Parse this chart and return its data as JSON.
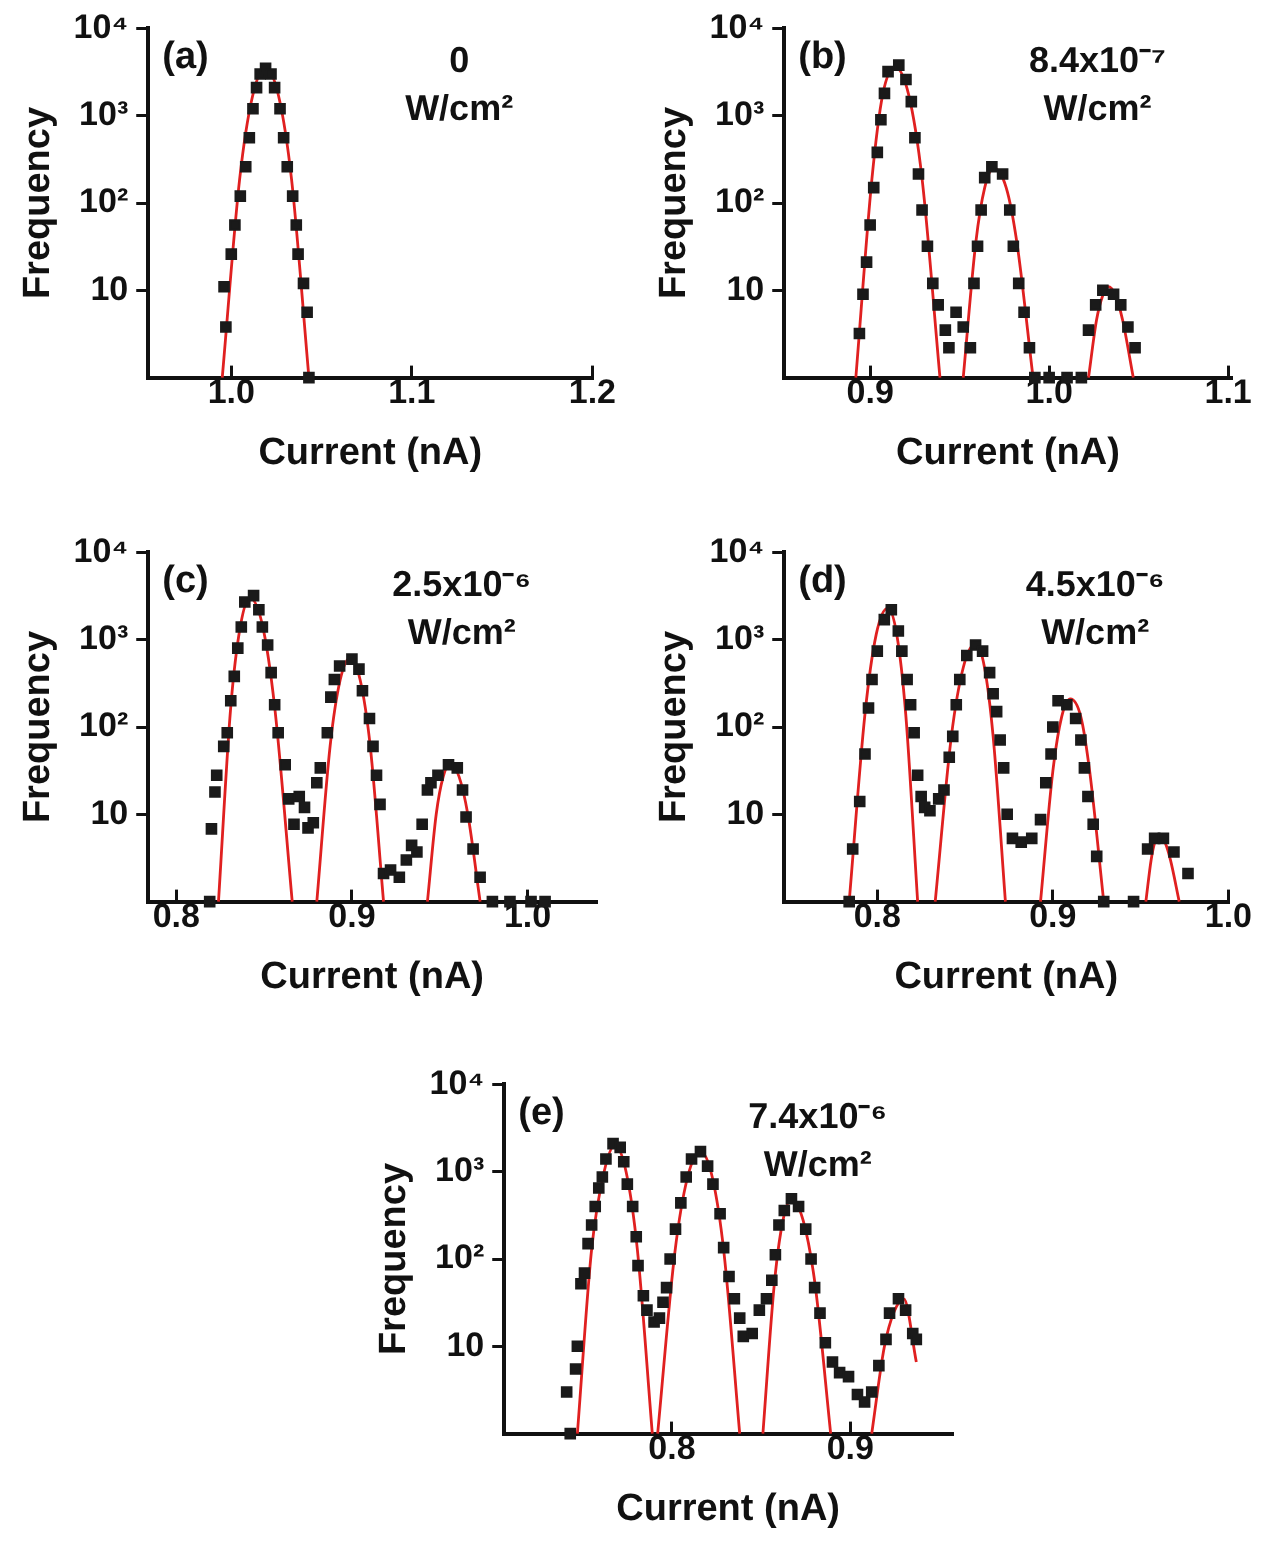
{
  "chart_data": [
    {
      "type": "scatter",
      "title": "(a)",
      "annotations": [
        "0",
        "W/cm²"
      ],
      "xlabel": "Current (nA)",
      "ylabel": "Frequency",
      "log": "y",
      "marker": "square",
      "xlim": [
        0.954,
        1.2
      ],
      "xticks": [
        {
          "value": 1,
          "label": "1.0"
        },
        {
          "value": 1.1,
          "label": "1.1"
        },
        {
          "value": 1.2,
          "label": "1.2"
        }
      ],
      "ylim": [
        1,
        10000
      ],
      "yticks": [
        {
          "value": 10,
          "label": "10"
        },
        {
          "value": 100,
          "label": "10²"
        },
        {
          "value": 1000,
          "label": "10³"
        },
        {
          "value": 10000,
          "label": "10⁴"
        }
      ],
      "series": [
        {
          "type": "scatter",
          "color": "#1a1a1a",
          "x": [
            0.996,
            0.997,
            1.0,
            1.002,
            1.005,
            1.008,
            1.01,
            1.012,
            1.014,
            1.016,
            1.019,
            1.022,
            1.024,
            1.027,
            1.029,
            1.031,
            1.034,
            1.036,
            1.037,
            1.04,
            1.042,
            1.043
          ],
          "values": [
            11,
            3.8,
            26,
            56,
            120,
            260,
            560,
            1200,
            2100,
            3000,
            3500,
            3000,
            2100,
            1200,
            560,
            260,
            120,
            56,
            26,
            12,
            5.6,
            1
          ]
        },
        {
          "type": "line",
          "color": "#e02020",
          "marker": "none",
          "x": [
            0.995,
            1.0046,
            1.0118,
            1.019,
            1.0262,
            1.0334,
            1.043
          ],
          "values": [
            1,
            185,
            1680,
            3500,
            1680,
            185,
            1
          ]
        }
      ]
    },
    {
      "type": "scatter",
      "title": "(b)",
      "annotations": [
        "8.4x10⁻⁷",
        "W/cm²"
      ],
      "xlabel": "Current (nA)",
      "ylabel": "Frequency",
      "log": "y",
      "marker": "square",
      "xlim": [
        0.852,
        1.102
      ],
      "xticks": [
        {
          "value": 0.9,
          "label": "0.9"
        },
        {
          "value": 1,
          "label": "1.0"
        },
        {
          "value": 1.1,
          "label": "1.1"
        }
      ],
      "ylim": [
        1,
        10000
      ],
      "yticks": [
        {
          "value": 10,
          "label": "10"
        },
        {
          "value": 100,
          "label": "10²"
        },
        {
          "value": 1000,
          "label": "10³"
        },
        {
          "value": 10000,
          "label": "10⁴"
        }
      ],
      "series": [
        {
          "type": "scatter",
          "color": "#1a1a1a",
          "x": [
            0.894,
            0.896,
            0.898,
            0.9,
            0.902,
            0.904,
            0.906,
            0.908,
            0.91,
            0.916,
            0.92,
            0.923,
            0.925,
            0.927,
            0.929,
            0.932,
            0.935,
            0.938,
            0.942,
            0.944,
            0.948,
            0.952,
            0.956,
            0.958,
            0.96,
            0.962,
            0.964,
            0.968,
            0.974,
            0.978,
            0.98,
            0.983,
            0.986,
            0.989,
            0.992,
            1.0,
            1.01,
            1.018,
            1.022,
            1.026,
            1.03,
            1.036,
            1.04,
            1.044,
            1.048
          ],
          "values": [
            3.2,
            9,
            21,
            56,
            150,
            380,
            900,
            1800,
            3200,
            3800,
            2600,
            1450,
            560,
            215,
            83,
            32,
            12,
            6.8,
            3.5,
            2.2,
            5.6,
            3.8,
            2.2,
            12,
            32,
            83,
            195,
            260,
            215,
            83,
            32,
            12,
            5.6,
            2.2,
            1,
            1,
            1,
            1,
            3.5,
            6.8,
            10,
            9,
            6.8,
            3.8,
            2.2
          ]
        },
        {
          "type": "line",
          "color": "#e02020",
          "marker": "none",
          "x": [
            0.892,
            0.901,
            0.907,
            0.914,
            0.9215,
            0.929,
            0.939,
            0.945,
            0.952,
            0.959,
            0.964,
            0.969,
            0.976,
            0.982,
            0.991,
            1.006,
            1.022,
            1.0265,
            1.03,
            1.033,
            1.037,
            1.041,
            1.047
          ],
          "values": [
            1,
            190,
            1740,
            3600,
            1740,
            190,
            1,
            null,
            1,
            35,
            150,
            250,
            150,
            35,
            1,
            null,
            1,
            4.6,
            8.8,
            11,
            8.8,
            4.6,
            1
          ]
        }
      ]
    },
    {
      "type": "scatter",
      "title": "(c)",
      "annotations": [
        "2.5x10⁻⁶",
        "W/cm²"
      ],
      "xlabel": "Current (nA)",
      "ylabel": "Frequency",
      "log": "y",
      "marker": "square",
      "xlim": [
        0.784,
        1.039
      ],
      "xticks": [
        {
          "value": 0.8,
          "label": "0.8"
        },
        {
          "value": 0.9,
          "label": "0.9"
        },
        {
          "value": 1,
          "label": "1.0"
        }
      ],
      "ylim": [
        1,
        10000
      ],
      "yticks": [
        {
          "value": 10,
          "label": "10"
        },
        {
          "value": 100,
          "label": "10²"
        },
        {
          "value": 1000,
          "label": "10³"
        },
        {
          "value": 10000,
          "label": "10⁴"
        }
      ],
      "series": [
        {
          "type": "scatter",
          "color": "#1a1a1a",
          "x": [
            0.819,
            0.82,
            0.822,
            0.823,
            0.827,
            0.829,
            0.831,
            0.833,
            0.835,
            0.837,
            0.839,
            0.844,
            0.847,
            0.849,
            0.852,
            0.854,
            0.856,
            0.858,
            0.862,
            0.864,
            0.867,
            0.87,
            0.873,
            0.875,
            0.878,
            0.88,
            0.882,
            0.886,
            0.888,
            0.89,
            0.893,
            0.9,
            0.904,
            0.906,
            0.91,
            0.912,
            0.914,
            0.916,
            0.918,
            0.922,
            0.927,
            0.931,
            0.934,
            0.937,
            0.94,
            0.943,
            0.945,
            0.949,
            0.955,
            0.96,
            0.963,
            0.965,
            0.969,
            0.973,
            0.98,
            0.99,
            1.002,
            1.01
          ],
          "values": [
            1,
            6.8,
            18,
            28,
            60,
            86,
            200,
            380,
            800,
            1400,
            2700,
            3200,
            2200,
            1400,
            870,
            420,
            180,
            86,
            37,
            15,
            7.7,
            16,
            12,
            7,
            8,
            23,
            34,
            86,
            220,
            350,
            500,
            600,
            460,
            260,
            125,
            60,
            28,
            13,
            2.1,
            2.3,
            1.9,
            3,
            4.4,
            3.7,
            7.7,
            19,
            23,
            28,
            37,
            34,
            19,
            9.3,
            4,
            1.9,
            1,
            1,
            1,
            1
          ]
        },
        {
          "type": "line",
          "color": "#e02020",
          "marker": "none",
          "x": [
            0.824,
            0.831,
            0.8366,
            0.842,
            0.849,
            0.856,
            0.866,
            0.873,
            0.88,
            0.8876,
            0.8933,
            0.899,
            0.9047,
            0.9104,
            0.918,
            0.93,
            0.943,
            0.948,
            0.952,
            0.956,
            0.961,
            0.966,
            0.973
          ],
          "values": [
            1,
            170,
            1480,
            3000,
            1480,
            170,
            1,
            null,
            1,
            61,
            345,
            620,
            345,
            61,
            1,
            null,
            1,
            10,
            27,
            38,
            27,
            10,
            1
          ]
        }
      ]
    },
    {
      "type": "scatter",
      "title": "(d)",
      "annotations": [
        "4.5x10⁻⁶",
        "W/cm²"
      ],
      "xlabel": "Current (nA)",
      "ylabel": "Frequency",
      "log": "y",
      "marker": "square",
      "xlim": [
        0.747,
        1.0
      ],
      "xticks": [
        {
          "value": 0.8,
          "label": "0.8"
        },
        {
          "value": 0.9,
          "label": "0.9"
        },
        {
          "value": 1,
          "label": "1.0"
        }
      ],
      "ylim": [
        1,
        10000
      ],
      "yticks": [
        {
          "value": 10,
          "label": "10"
        },
        {
          "value": 100,
          "label": "10²"
        },
        {
          "value": 1000,
          "label": "10³"
        },
        {
          "value": 10000,
          "label": "10⁴"
        }
      ],
      "series": [
        {
          "type": "scatter",
          "color": "#1a1a1a",
          "x": [
            0.784,
            0.786,
            0.79,
            0.793,
            0.795,
            0.797,
            0.8,
            0.804,
            0.808,
            0.812,
            0.814,
            0.817,
            0.819,
            0.821,
            0.823,
            0.825,
            0.827,
            0.83,
            0.835,
            0.838,
            0.841,
            0.843,
            0.845,
            0.847,
            0.851,
            0.856,
            0.86,
            0.864,
            0.866,
            0.868,
            0.87,
            0.872,
            0.874,
            0.877,
            0.882,
            0.888,
            0.893,
            0.896,
            0.899,
            0.9,
            0.903,
            0.908,
            0.913,
            0.916,
            0.918,
            0.92,
            0.923,
            0.925,
            0.929,
            0.946,
            0.954,
            0.958,
            0.963,
            0.969,
            0.977
          ],
          "values": [
            1,
            4,
            14,
            49,
            165,
            350,
            740,
            1700,
            2200,
            1260,
            740,
            350,
            180,
            86,
            28,
            16,
            12,
            11,
            15,
            19,
            45,
            78,
            180,
            350,
            660,
            870,
            740,
            420,
            240,
            150,
            71,
            34,
            10,
            5.3,
            4.8,
            5.3,
            8.7,
            23,
            49,
            100,
            200,
            180,
            125,
            71,
            34,
            16,
            7.7,
            3.3,
            1,
            1,
            4,
            5.3,
            5.3,
            3.7,
            2.1
          ]
        },
        {
          "type": "line",
          "color": "#e02020",
          "marker": "none",
          "x": [
            0.784,
            0.793,
            0.7994,
            0.806,
            0.8111,
            0.8162,
            0.823,
            0.828,
            0.833,
            0.8422,
            0.8491,
            0.856,
            0.861,
            0.866,
            0.873,
            0.883,
            0.893,
            0.9,
            0.905,
            0.91,
            0.916,
            0.921,
            0.929,
            0.941,
            0.953,
            0.956,
            0.958,
            0.96,
            0.964,
            0.967,
            0.972
          ],
          "values": [
            1,
            141,
            1150,
            2300,
            1150,
            141,
            1,
            null,
            1,
            78,
            490,
            900,
            490,
            78,
            1,
            null,
            1,
            31,
            130,
            210,
            130,
            31,
            1,
            null,
            1,
            3,
            4.7,
            5.5,
            4.7,
            3,
            1
          ]
        }
      ]
    },
    {
      "type": "scatter",
      "title": "(e)",
      "annotations": [
        "7.4x10⁻⁶",
        "W/cm²"
      ],
      "xlabel": "Current (nA)",
      "ylabel": "Frequency",
      "log": "y",
      "marker": "square",
      "xlim": [
        0.706,
        0.957
      ],
      "xticks": [
        {
          "value": 0.8,
          "label": "0.8"
        },
        {
          "value": 0.9,
          "label": "0.9"
        }
      ],
      "ylim": [
        1,
        10000
      ],
      "yticks": [
        {
          "value": 10,
          "label": "10"
        },
        {
          "value": 100,
          "label": "10²"
        },
        {
          "value": 1000,
          "label": "10³"
        },
        {
          "value": 10000,
          "label": "10⁴"
        }
      ],
      "series": [
        {
          "type": "scatter",
          "color": "#1a1a1a",
          "x": [
            0.741,
            0.743,
            0.746,
            0.747,
            0.749,
            0.751,
            0.753,
            0.755,
            0.757,
            0.759,
            0.761,
            0.763,
            0.767,
            0.771,
            0.773,
            0.775,
            0.778,
            0.78,
            0.781,
            0.784,
            0.786,
            0.79,
            0.793,
            0.795,
            0.797,
            0.799,
            0.802,
            0.805,
            0.808,
            0.811,
            0.816,
            0.82,
            0.823,
            0.827,
            0.829,
            0.832,
            0.835,
            0.838,
            0.84,
            0.845,
            0.849,
            0.853,
            0.856,
            0.858,
            0.86,
            0.863,
            0.867,
            0.871,
            0.875,
            0.878,
            0.88,
            0.883,
            0.886,
            0.89,
            0.894,
            0.899,
            0.904,
            0.908,
            0.912,
            0.916,
            0.92,
            0.922,
            0.927,
            0.931,
            0.935,
            0.937
          ],
          "values": [
            3,
            1,
            5.5,
            10,
            52,
            69,
            150,
            245,
            400,
            650,
            870,
            1400,
            2100,
            1900,
            1300,
            720,
            400,
            180,
            84,
            38,
            26,
            19,
            21,
            32,
            47,
            100,
            220,
            440,
            870,
            1400,
            1700,
            1160,
            720,
            330,
            135,
            63,
            35,
            21,
            13,
            14,
            26,
            35,
            57,
            112,
            245,
            360,
            490,
            400,
            220,
            100,
            47,
            24,
            11,
            6.6,
            5,
            4.5,
            2.8,
            2.3,
            3,
            6,
            12,
            24,
            35,
            26,
            14,
            12
          ]
        },
        {
          "type": "line",
          "color": "#e02020",
          "marker": "none",
          "x": [
            0.747,
            0.755,
            0.762,
            0.768,
            0.7743,
            0.7806,
            0.789,
            0.7905,
            0.792,
            0.8016,
            0.8088,
            0.816,
            0.8226,
            0.8292,
            0.838,
            0.8445,
            0.851,
            0.8574,
            0.8622,
            0.867,
            0.8736,
            0.8802,
            0.889,
            0.9005,
            0.912,
            0.919,
            0.9246,
            0.93,
            0.937
          ],
          "values": [
            1,
            130,
            1000,
            2000,
            1000,
            130,
            1,
            null,
            1,
            117,
            870,
            1700,
            870,
            117,
            1,
            null,
            1,
            52,
            275,
            480,
            275,
            52,
            1,
            null,
            1,
            9.7,
            25,
            35,
            6.6
          ]
        }
      ]
    }
  ]
}
